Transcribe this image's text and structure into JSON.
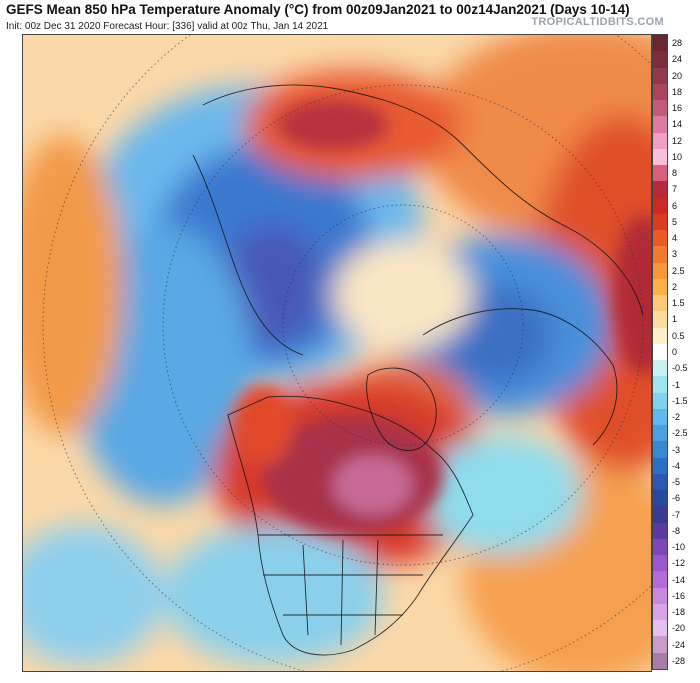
{
  "header": {
    "title": "GEFS Mean 850 hPa Temperature Anomaly (°C) from 00z09Jan2021 to 00z14Jan2021 (Days 10-14)",
    "subtitle": "Init: 00z Dec 31 2020   Forecast Hour: [336]   valid at 00z Thu, Jan 14 2021",
    "source": "TROPICALTIDBITS.COM"
  },
  "map": {
    "projection": "north-polar-stereographic",
    "variable": "850 hPa temperature anomaly",
    "features": [
      {
        "name": "canada-warm-anomaly",
        "sign": "positive",
        "intensity": "strong"
      },
      {
        "name": "greenland-warm-anomaly",
        "sign": "positive",
        "intensity": "moderate"
      },
      {
        "name": "alaska-west-coast-warm-anomaly",
        "sign": "positive",
        "intensity": "strong"
      },
      {
        "name": "eastern-europe-warm-anomaly",
        "sign": "positive",
        "intensity": "strong"
      },
      {
        "name": "northern-asia-cold-anomaly",
        "sign": "negative",
        "intensity": "strong"
      },
      {
        "name": "scandinavia-cold-anomaly",
        "sign": "negative",
        "intensity": "moderate"
      },
      {
        "name": "central-us-cold-anomaly",
        "sign": "negative",
        "intensity": "weak"
      },
      {
        "name": "north-pacific-cold-anomaly",
        "sign": "negative",
        "intensity": "moderate"
      }
    ]
  },
  "colorbar": {
    "labels": [
      "28",
      "24",
      "20",
      "18",
      "16",
      "14",
      "12",
      "10",
      "8",
      "7",
      "6",
      "5",
      "4",
      "3",
      "2.5",
      "2",
      "1.5",
      "1",
      "0.5",
      "0",
      "-0.5",
      "-1",
      "-1.5",
      "-2",
      "-2.5",
      "-3",
      "-4",
      "-5",
      "-6",
      "-7",
      "-8",
      "-10",
      "-12",
      "-14",
      "-16",
      "-18",
      "-20",
      "-24",
      "-28"
    ],
    "colors": [
      "#6b2430",
      "#7a2e3c",
      "#8e3a4c",
      "#a8465e",
      "#c45a7a",
      "#dc7aa0",
      "#f0a0c4",
      "#f8c0d8",
      "#d8607a",
      "#b8283a",
      "#cc2a2a",
      "#dd3a22",
      "#ea5a28",
      "#f27a30",
      "#f8963c",
      "#fbb04c",
      "#fdc878",
      "#fddca0",
      "#fdeec8",
      "#ffffff",
      "#c8f0f0",
      "#a0e4f0",
      "#80d0f0",
      "#60b8ec",
      "#4aa0e0",
      "#3888d4",
      "#2a70c4",
      "#2a58b0",
      "#2a48a0",
      "#3a3a90",
      "#5a3ca0",
      "#7a48b8",
      "#9a58cc",
      "#b46ad8",
      "#c888e0",
      "#d8a4e8",
      "#e4c0f0",
      "#c89cc8",
      "#a87ca8"
    ]
  }
}
